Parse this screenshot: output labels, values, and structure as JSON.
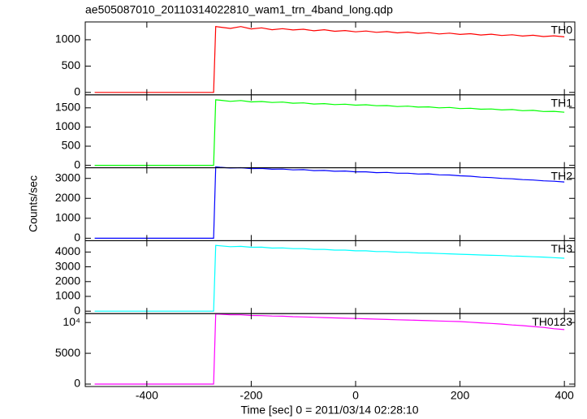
{
  "title": "ae505087010_20110314022810_wam1_trn_4band_long.qdp",
  "x_label": "Time [sec] 0 = 2011/03/14 02:28:10",
  "y_label": "Counts/sec",
  "x": [
    -500,
    -272,
    -268,
    -260,
    -240,
    -220,
    -200,
    -180,
    -160,
    -140,
    -120,
    -100,
    -80,
    -60,
    -40,
    -20,
    0,
    20,
    40,
    60,
    80,
    100,
    120,
    140,
    160,
    180,
    200,
    220,
    240,
    260,
    280,
    300,
    320,
    340,
    360,
    380,
    400
  ],
  "xlim": [
    -518,
    420
  ],
  "xticks": [
    -400,
    -200,
    0,
    200,
    400
  ],
  "chart_data": [
    {
      "type": "line",
      "name": "TH0",
      "color": "#ff0000",
      "ylim": [
        -46,
        1338
      ],
      "yticks": [
        0,
        500,
        1000
      ],
      "values": [
        0,
        0,
        1250,
        1240,
        1215,
        1250,
        1205,
        1225,
        1190,
        1210,
        1185,
        1200,
        1170,
        1190,
        1160,
        1175,
        1150,
        1165,
        1140,
        1155,
        1130,
        1145,
        1120,
        1135,
        1110,
        1125,
        1100,
        1115,
        1090,
        1105,
        1080,
        1095,
        1070,
        1085,
        1060,
        1075,
        1055
      ]
    },
    {
      "type": "line",
      "name": "TH1",
      "color": "#00ff00",
      "ylim": [
        -63,
        1839
      ],
      "yticks": [
        0,
        500,
        1000,
        1500
      ],
      "values": [
        0,
        0,
        1710,
        1700,
        1670,
        1690,
        1655,
        1665,
        1640,
        1650,
        1620,
        1630,
        1600,
        1610,
        1585,
        1595,
        1570,
        1580,
        1555,
        1560,
        1535,
        1545,
        1520,
        1525,
        1500,
        1510,
        1480,
        1490,
        1465,
        1470,
        1445,
        1455,
        1425,
        1435,
        1405,
        1410,
        1385
      ]
    },
    {
      "type": "line",
      "name": "TH2",
      "color": "#0000ff",
      "ylim": [
        -123,
        3534
      ],
      "yticks": [
        0,
        1000,
        2000,
        3000
      ],
      "values": [
        0,
        0,
        3580,
        3560,
        3520,
        3540,
        3490,
        3500,
        3460,
        3470,
        3430,
        3440,
        3390,
        3400,
        3360,
        3370,
        3330,
        3330,
        3290,
        3300,
        3260,
        3260,
        3220,
        3230,
        3180,
        3170,
        3130,
        3110,
        3060,
        3040,
        3000,
        2980,
        2940,
        2920,
        2880,
        2860,
        2820
      ]
    },
    {
      "type": "line",
      "name": "TH3",
      "color": "#00ffff",
      "ylim": [
        -164,
        4767
      ],
      "yticks": [
        0,
        1000,
        2000,
        3000,
        4000
      ],
      "values": [
        0,
        0,
        4450,
        4420,
        4360,
        4380,
        4320,
        4330,
        4270,
        4280,
        4230,
        4230,
        4180,
        4180,
        4130,
        4130,
        4080,
        4080,
        4030,
        4030,
        3990,
        3980,
        3940,
        3930,
        3900,
        3880,
        3850,
        3830,
        3800,
        3780,
        3760,
        3730,
        3710,
        3680,
        3660,
        3620,
        3580
      ]
    },
    {
      "type": "line",
      "name": "TH0123",
      "color": "#ff00ff",
      "ylim": [
        -395,
        11447
      ],
      "yticks": [
        0,
        5000,
        {
          "value": 10000,
          "label": "10⁴"
        }
      ],
      "values": [
        0,
        0,
        11400,
        11350,
        11250,
        11250,
        11150,
        11120,
        11050,
        11020,
        10950,
        10900,
        10850,
        10800,
        10750,
        10700,
        10650,
        10600,
        10550,
        10500,
        10450,
        10400,
        10350,
        10300,
        10250,
        10200,
        10150,
        10050,
        9950,
        9850,
        9750,
        9600,
        9500,
        9350,
        9200,
        9000,
        8850
      ]
    }
  ]
}
